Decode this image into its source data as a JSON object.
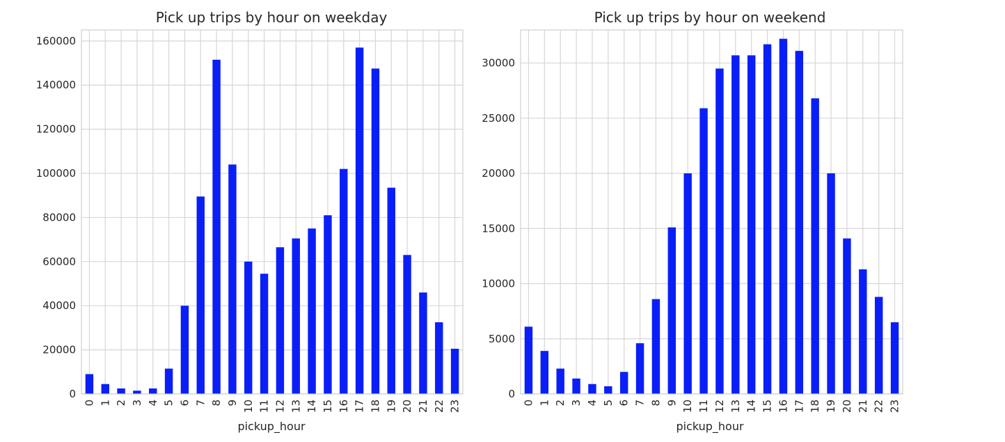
{
  "chart_data": [
    {
      "type": "bar",
      "title": "Pick up trips by hour on weekday",
      "xlabel": "pickup_hour",
      "ylabel": "",
      "categories": [
        "0",
        "1",
        "2",
        "3",
        "4",
        "5",
        "6",
        "7",
        "8",
        "9",
        "10",
        "11",
        "12",
        "13",
        "14",
        "15",
        "16",
        "17",
        "18",
        "19",
        "20",
        "21",
        "22",
        "23"
      ],
      "values": [
        9000,
        4500,
        2500,
        1500,
        2500,
        11500,
        40000,
        89500,
        151500,
        104000,
        60000,
        54500,
        66500,
        70500,
        75000,
        81000,
        102000,
        157000,
        147500,
        93500,
        63000,
        46000,
        32500,
        20500
      ],
      "ylim": [
        0,
        165000
      ],
      "yticks": [
        0,
        20000,
        40000,
        60000,
        80000,
        100000,
        120000,
        140000,
        160000
      ],
      "grid": true,
      "bar_color": "#0a1ff7"
    },
    {
      "type": "bar",
      "title": "Pick up trips by hour on weekend",
      "xlabel": "pickup_hour",
      "ylabel": "",
      "categories": [
        "0",
        "1",
        "2",
        "3",
        "4",
        "5",
        "6",
        "7",
        "8",
        "9",
        "10",
        "11",
        "12",
        "13",
        "14",
        "15",
        "16",
        "17",
        "18",
        "19",
        "20",
        "21",
        "22",
        "23"
      ],
      "values": [
        6100,
        3900,
        2300,
        1400,
        900,
        700,
        2000,
        4600,
        8600,
        15100,
        20000,
        25900,
        29500,
        30700,
        30700,
        31700,
        32200,
        31100,
        26800,
        20000,
        14100,
        11300,
        8800,
        6500
      ],
      "ylim": [
        0,
        33000
      ],
      "yticks": [
        0,
        5000,
        10000,
        15000,
        20000,
        25000,
        30000
      ],
      "grid": true,
      "bar_color": "#0a1ff7"
    }
  ]
}
